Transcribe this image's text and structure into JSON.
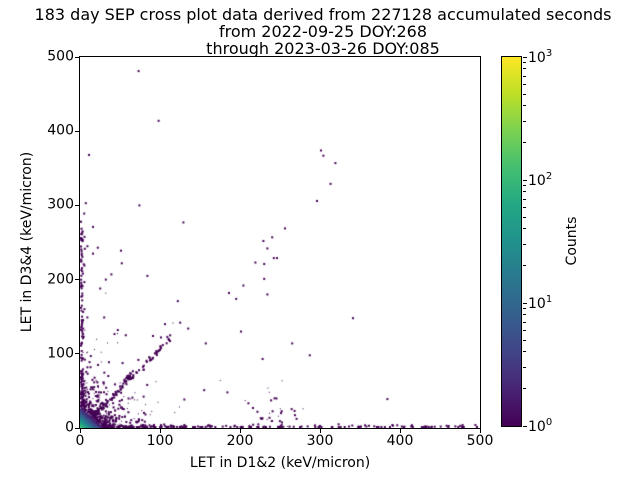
{
  "title": {
    "line1": "183 day SEP cross plot data derived from 227128 accumulated seconds",
    "line2": "from 2022-09-25 DOY:268",
    "line3": "through 2023-03-26 DOY:085"
  },
  "chart_data": {
    "type": "heatmap",
    "subtype": "2D-histogram cross plot rendered as small count-colored bins",
    "title": "183 day SEP cross plot data derived from 227128 accumulated seconds from 2022-09-25 DOY:268 through 2023-03-26 DOY:085",
    "xlabel": "LET in D1&2 (keV/micron)",
    "ylabel": "LET in D3&4 (keV/micron)",
    "xlim": [
      0,
      500
    ],
    "ylim": [
      0,
      500
    ],
    "xticks": [
      0,
      100,
      200,
      300,
      400,
      500
    ],
    "yticks": [
      0,
      100,
      200,
      300,
      400,
      500
    ],
    "grid": false,
    "colorbar": {
      "label": "Counts",
      "scale": "log",
      "range": [
        1,
        1000
      ],
      "major_ticks": [
        {
          "base": "10",
          "exp": "0"
        },
        {
          "base": "10",
          "exp": "1"
        },
        {
          "base": "10",
          "exp": "2"
        },
        {
          "base": "10",
          "exp": "3"
        }
      ],
      "minor_tick_mantissas": [
        2,
        3,
        4,
        5,
        6,
        7,
        8,
        9
      ],
      "colormap": "viridis",
      "viridis_stops": [
        "#440154",
        "#482475",
        "#414487",
        "#355f8d",
        "#2a788e",
        "#21918c",
        "#22a884",
        "#44bf70",
        "#7ad151",
        "#bddf26",
        "#fde725"
      ]
    },
    "isolated_points": [
      [
        72,
        481
      ],
      [
        97,
        414
      ],
      [
        10,
        368
      ],
      [
        300,
        374
      ],
      [
        303,
        367
      ],
      [
        318,
        357
      ],
      [
        312,
        329
      ],
      [
        295,
        306
      ],
      [
        73,
        300
      ],
      [
        6,
        303
      ],
      [
        4,
        289
      ],
      [
        128,
        277
      ],
      [
        15,
        271
      ],
      [
        255,
        269
      ],
      [
        239,
        257
      ],
      [
        228,
        252
      ],
      [
        233,
        242
      ],
      [
        241,
        229
      ],
      [
        245,
        229
      ],
      [
        218,
        223
      ],
      [
        229,
        221
      ],
      [
        229,
        201
      ],
      [
        203,
        192
      ],
      [
        233,
        180
      ],
      [
        340,
        148
      ],
      [
        286,
        98
      ],
      [
        383,
        39
      ],
      [
        0,
        278
      ],
      [
        2,
        265
      ],
      [
        1,
        261
      ],
      [
        0,
        256
      ],
      [
        8,
        245
      ],
      [
        15,
        235
      ],
      [
        21,
        243
      ],
      [
        50,
        239
      ],
      [
        51,
        222
      ],
      [
        38,
        207
      ],
      [
        31,
        200
      ],
      [
        83,
        205
      ],
      [
        24,
        188
      ],
      [
        121,
        171
      ],
      [
        0,
        162
      ],
      [
        8,
        149
      ],
      [
        29,
        149
      ],
      [
        46,
        132
      ],
      [
        56,
        125
      ],
      [
        105,
        140
      ],
      [
        124,
        142
      ],
      [
        134,
        134
      ],
      [
        90,
        124
      ],
      [
        100,
        122
      ],
      [
        156,
        114
      ],
      [
        264,
        114
      ],
      [
        227,
        93
      ],
      [
        154,
        51
      ],
      [
        183,
        48
      ],
      [
        215,
        27
      ],
      [
        242,
        40
      ],
      [
        250,
        20
      ],
      [
        267,
        23
      ],
      [
        200,
        130
      ],
      [
        194,
        174
      ],
      [
        185,
        182
      ],
      [
        390,
        3
      ],
      [
        401,
        2
      ],
      [
        430,
        2
      ],
      [
        457,
        3
      ],
      [
        477,
        4
      ],
      [
        350,
        2
      ],
      [
        360,
        3
      ],
      [
        370,
        1
      ],
      [
        322,
        5
      ],
      [
        335,
        2
      ]
    ],
    "dense_clusters": {
      "seed": 42,
      "intensity": {
        "max_counts": 150,
        "falloff": 6
      },
      "core": {
        "n": 900,
        "scale": 6.5
      },
      "halo": {
        "n": 260,
        "scale": 18
      },
      "speckle": {
        "n": 240,
        "scale": 30
      },
      "bottom_band": {
        "n": 300,
        "x_max": 500,
        "x_power": 3,
        "y_sigma": 2
      },
      "left_band": {
        "n": 170,
        "y_max": 270,
        "y_power": 2.2,
        "x_sigma": 2
      },
      "diagonal": {
        "n": 115,
        "x_min": 5,
        "x_max": 112,
        "slope": 1.08,
        "sigma": 2.5
      },
      "diagonal_clump": {
        "n": 20,
        "x_center": 58,
        "x_sigma": 4,
        "slope": 1.17,
        "sigma": 1.5
      },
      "bottom_cluster": {
        "n": 30,
        "x_center": 240,
        "x_sigma": 18,
        "y_scale": 16
      }
    }
  }
}
